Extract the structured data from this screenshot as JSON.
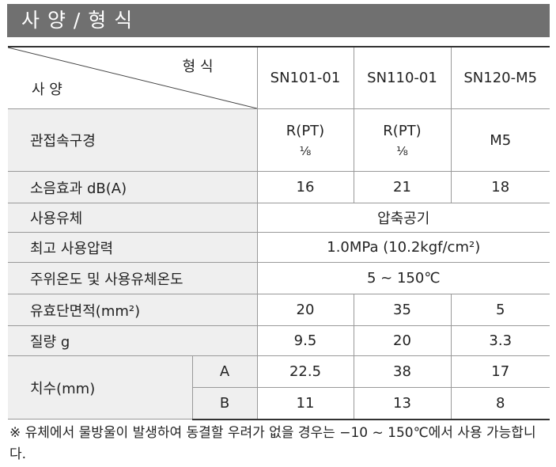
{
  "header": {
    "title": "사 양 / 형 식"
  },
  "table": {
    "corner": {
      "top": "형 식",
      "bottom": "사 양"
    },
    "columns": [
      "SN101-01",
      "SN110-01",
      "SN120-M5"
    ],
    "rows": [
      {
        "label": "관접속구경",
        "values": [
          [
            "R(PT)",
            "⅛"
          ],
          [
            "R(PT)",
            "⅛"
          ],
          "M5"
        ]
      },
      {
        "label": "소음효과 dB(A)",
        "values": [
          16,
          21,
          18
        ]
      },
      {
        "label": "사용유체",
        "value": "압축공기"
      },
      {
        "label": "최고 사용압력",
        "value": "1.0MPa (10.2kgf/cm²)"
      },
      {
        "label": "주위온도 및 사용유체온도",
        "value": "5 ~ 150℃"
      },
      {
        "label": "유효단면적(mm²)",
        "values": [
          20,
          35,
          5
        ]
      },
      {
        "label": "질량 g",
        "values": [
          9.5,
          20,
          3.3
        ]
      }
    ],
    "dimensions": {
      "label": "치수(mm)",
      "rows": [
        {
          "label": "A",
          "values": [
            22.5,
            38,
            17
          ]
        },
        {
          "label": "B",
          "values": [
            11,
            13,
            8
          ]
        }
      ]
    }
  },
  "footnote": "※ 유체에서 물방울이 발생하여 동결할 우려가 없을 경우는 −10 ~ 150℃에서 사용 가능합니다."
}
